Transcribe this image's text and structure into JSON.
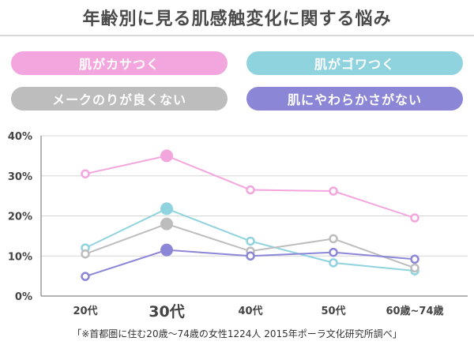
{
  "chart_data": {
    "type": "line",
    "title": "年齢別に見る肌感触変化に関する悩み",
    "categories": [
      "20代",
      "30代",
      "40代",
      "50代",
      "60歳~74歳"
    ],
    "highlight_category": "30代",
    "ylim": [
      0,
      40
    ],
    "yticks": [
      0,
      10,
      20,
      30,
      40
    ],
    "ytick_labels": [
      "0%",
      "10%",
      "20%",
      "30%",
      "40%"
    ],
    "xlabel": "",
    "ylabel": "",
    "grid": true,
    "legend_position": "top",
    "series": [
      {
        "name": "肌がカサつく",
        "color": "#f3a6de",
        "values": [
          30.5,
          35,
          26.5,
          26.2,
          19.5
        ]
      },
      {
        "name": "肌がゴワつく",
        "color": "#8fd3de",
        "values": [
          12,
          21.8,
          13.7,
          8.3,
          6.3
        ]
      },
      {
        "name": "メークのりが良くない",
        "color": "#bdbdbd",
        "values": [
          10.5,
          18,
          11.2,
          14.3,
          7
        ]
      },
      {
        "name": "肌にやわらかさがない",
        "color": "#8c86d6",
        "values": [
          4.9,
          11.5,
          10,
          10.9,
          9.2
        ]
      }
    ]
  },
  "footnote": "「※首都圏に住む20歳～74歳の女性1224人 2015年ポーラ文化研究所調べ」"
}
